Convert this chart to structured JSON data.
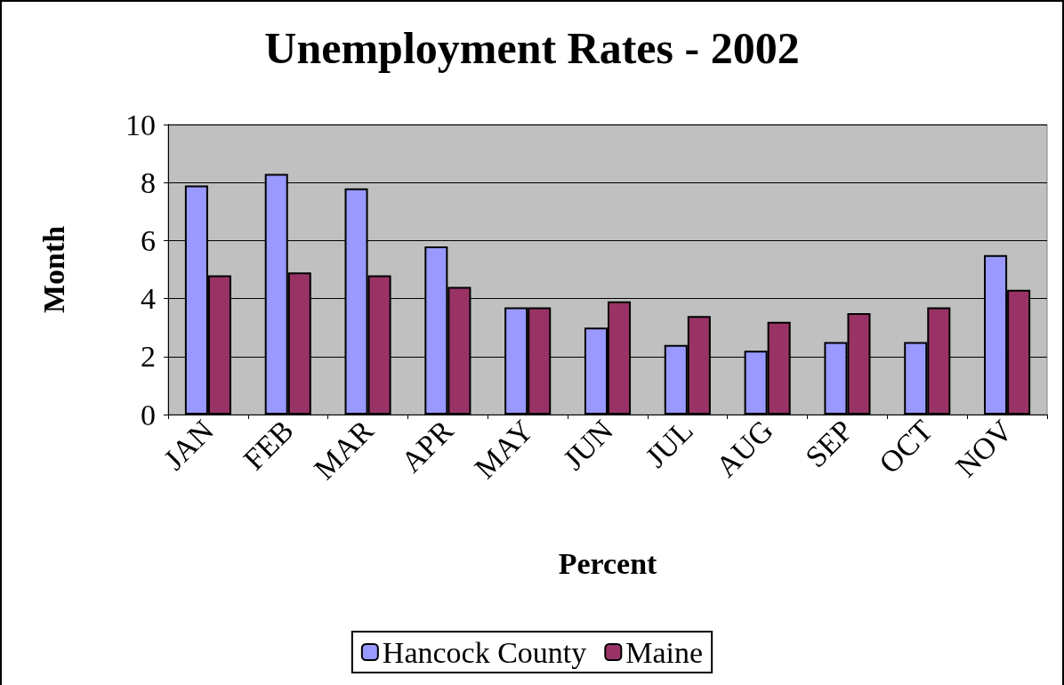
{
  "chart_data": {
    "type": "bar",
    "title": "Unemployment Rates - 2002",
    "xlabel": "Percent",
    "ylabel": "Month",
    "categories": [
      "JAN",
      "FEB",
      "MAR",
      "APR",
      "MAY",
      "JUN",
      "JUL",
      "AUG",
      "SEP",
      "OCT",
      "NOV"
    ],
    "series": [
      {
        "name": "Hancock County",
        "color": "#9999ff",
        "values": [
          7.9,
          8.3,
          7.8,
          5.8,
          3.7,
          3.0,
          2.4,
          2.2,
          2.5,
          2.5,
          5.5
        ]
      },
      {
        "name": "Maine",
        "color": "#993366",
        "values": [
          4.8,
          4.9,
          4.8,
          4.4,
          3.7,
          3.9,
          3.4,
          3.2,
          3.5,
          3.7,
          4.3
        ]
      }
    ],
    "ylim": [
      0,
      10
    ],
    "yticks": [
      0,
      2,
      4,
      6,
      8,
      10
    ],
    "grid": "y",
    "legend": "bottom"
  }
}
